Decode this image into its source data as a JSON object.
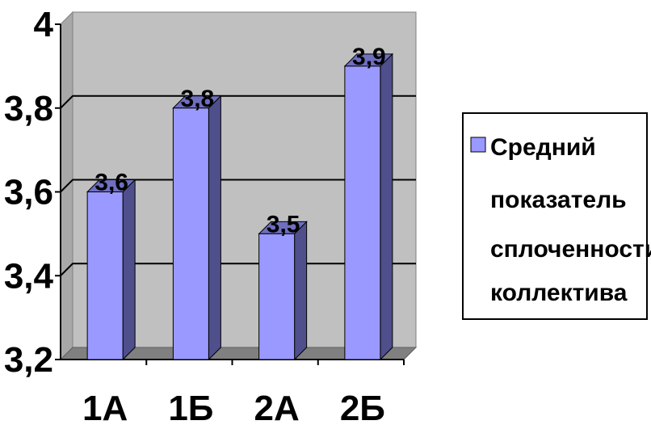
{
  "chart_data": {
    "type": "bar",
    "categories": [
      "1А",
      "1Б",
      "2А",
      "2Б"
    ],
    "series": [
      {
        "name": "Средний показатель сплоченности коллектива",
        "values": [
          3.6,
          3.8,
          3.5,
          3.9
        ]
      }
    ],
    "data_labels": [
      "3,6",
      "3,8",
      "3,5",
      "3,9"
    ],
    "y_ticks": [
      "3,2",
      "3,4",
      "3,6",
      "3,8",
      "4"
    ],
    "ylim": [
      3.2,
      4.0
    ],
    "grid": true,
    "legend_position": "right",
    "legend_lines": [
      "Средний",
      "показатель",
      "сплоченности",
      "коллектива"
    ],
    "colors": {
      "bar_front": "#9999ff",
      "bar_side": "#4f4f8c",
      "bar_top": "#6f6fbf",
      "plot_wall": "#c0c0c0",
      "plot_floor": "#808080"
    }
  }
}
